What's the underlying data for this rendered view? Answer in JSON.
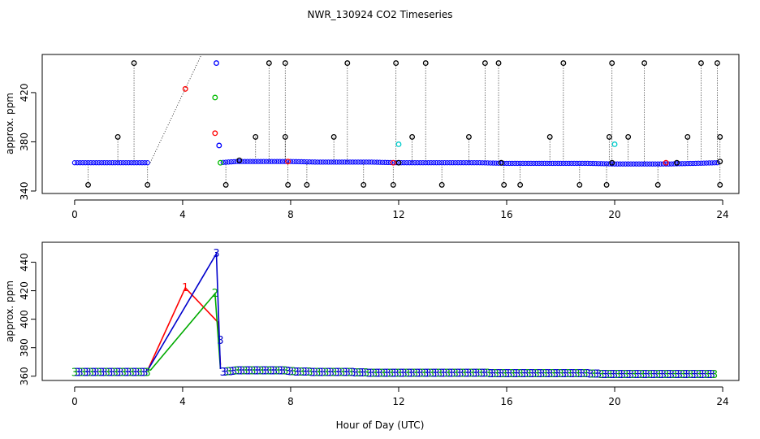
{
  "chart_data": [
    {
      "panel": "top",
      "type": "scatter",
      "title": "NWR_130924  CO2 Timeseries",
      "xlabel": "",
      "ylabel": "approx. ppm",
      "xlim": [
        -1.2,
        24.6
      ],
      "ylim": [
        338,
        451
      ],
      "xticks": [
        0,
        4,
        8,
        12,
        16,
        20,
        24
      ],
      "yticks": [
        340,
        380,
        420
      ],
      "grid": false,
      "baseline": {
        "x": [
          0,
          1,
          2,
          2.8,
          5.3,
          6,
          7,
          8,
          9,
          10,
          11,
          12,
          13,
          14,
          15,
          16,
          17,
          18,
          19,
          20,
          21,
          22,
          23,
          23.8
        ],
        "y": [
          363,
          363,
          363,
          363,
          363,
          364,
          364,
          364,
          363.5,
          363.5,
          363.5,
          363,
          363,
          363,
          363,
          362.5,
          362.5,
          362.5,
          362.5,
          362,
          362,
          362,
          362.5,
          363
        ],
        "color": "#0000ff"
      },
      "series": [
        {
          "color": "#000000",
          "points": [
            [
              0.5,
              345
            ],
            [
              1.6,
              384
            ],
            [
              2.2,
              444
            ],
            [
              2.7,
              345
            ],
            [
              5.6,
              345
            ],
            [
              6.7,
              384
            ],
            [
              7.2,
              444
            ],
            [
              7.8,
              444
            ],
            [
              7.9,
              345
            ],
            [
              7.8,
              384
            ],
            [
              8.6,
              345
            ],
            [
              9.6,
              384
            ],
            [
              10.1,
              444
            ],
            [
              10.7,
              345
            ],
            [
              11.8,
              345
            ],
            [
              11.9,
              444
            ],
            [
              12.5,
              384
            ],
            [
              13.0,
              444
            ],
            [
              13.6,
              345
            ],
            [
              14.6,
              384
            ],
            [
              15.2,
              444
            ],
            [
              15.7,
              444
            ],
            [
              15.9,
              345
            ],
            [
              16.5,
              345
            ],
            [
              17.6,
              384
            ],
            [
              18.1,
              444
            ],
            [
              18.7,
              345
            ],
            [
              19.7,
              345
            ],
            [
              19.9,
              444
            ],
            [
              19.8,
              384
            ],
            [
              20.5,
              384
            ],
            [
              21.1,
              444
            ],
            [
              21.6,
              345
            ],
            [
              22.7,
              384
            ],
            [
              23.2,
              444
            ],
            [
              23.8,
              444
            ],
            [
              23.9,
              345
            ],
            [
              23.9,
              384
            ],
            [
              6.1,
              365
            ],
            [
              12.0,
              363
            ],
            [
              15.8,
              363
            ],
            [
              19.9,
              363
            ],
            [
              22.3,
              363
            ],
            [
              23.9,
              364
            ]
          ]
        },
        {
          "color": "#ff0000",
          "points": [
            [
              4.1,
              423
            ],
            [
              5.2,
              387
            ],
            [
              7.9,
              364
            ],
            [
              11.8,
              363
            ],
            [
              21.9,
              363
            ]
          ]
        },
        {
          "color": "#00bb00",
          "points": [
            [
              5.2,
              416
            ],
            [
              5.4,
              363
            ]
          ]
        },
        {
          "color": "#0000ff",
          "points": [
            [
              5.25,
              444
            ],
            [
              5.35,
              377
            ]
          ]
        },
        {
          "color": "#00cccc",
          "points": [
            [
              12.0,
              378
            ],
            [
              20.0,
              378
            ]
          ]
        }
      ]
    },
    {
      "panel": "bottom",
      "type": "line",
      "title": "",
      "xlabel": "Hour of Day (UTC)",
      "ylabel": "approx. ppm",
      "xlim": [
        -1.2,
        24.6
      ],
      "ylim": [
        357,
        454
      ],
      "xticks": [
        0,
        4,
        8,
        12,
        16,
        20,
        24
      ],
      "yticks": [
        360,
        380,
        400,
        420,
        440
      ],
      "marker": "3",
      "grid": false,
      "series": [
        {
          "color": "#ff0000",
          "label": "1",
          "x": [
            2.7,
            4.1,
            5.3,
            5.4
          ],
          "y": [
            364,
            422,
            398,
            368
          ]
        },
        {
          "color": "#00aa00",
          "label": "2",
          "x": [
            2.8,
            5.2,
            5.4
          ],
          "y": [
            364,
            418,
            365
          ]
        },
        {
          "color": "#0000cc",
          "label": "3",
          "x": [
            2.7,
            5.25,
            5.35,
            5.4
          ],
          "y": [
            364,
            446,
            392,
            365
          ]
        }
      ],
      "baseline": {
        "x": [
          0,
          1,
          2,
          2.8,
          5.4,
          6,
          7,
          7.8,
          8,
          9,
          10,
          11,
          11.8,
          12,
          13,
          14,
          15,
          15.8,
          16,
          17,
          18,
          19,
          19.8,
          20,
          21,
          22,
          23,
          23.8
        ],
        "y": [
          363,
          363,
          363,
          363,
          363,
          364,
          364,
          364,
          363.5,
          363,
          363,
          362.5,
          362.5,
          362.5,
          362.5,
          362.5,
          362.5,
          362,
          362,
          362,
          362,
          362,
          361.5,
          361.5,
          361.5,
          361.5,
          361.5,
          361.5
        ],
        "color": "#0000cc"
      }
    }
  ]
}
